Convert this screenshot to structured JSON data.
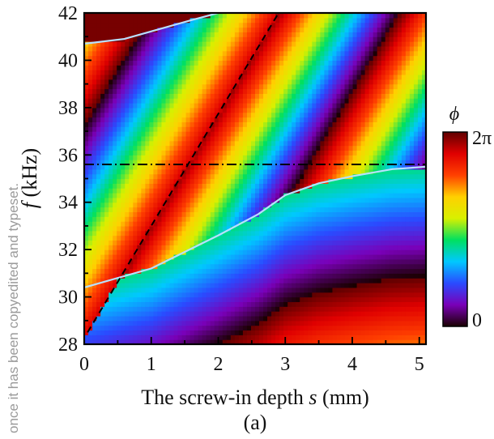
{
  "watermark": "once it has been copyedited and typeset.",
  "chart_data": {
    "type": "heatmap",
    "panel_label": "(a)",
    "xlabel_prefix": "The screw-in depth ",
    "xlabel_var": "s",
    "xlabel_suffix": " (mm)",
    "ylabel_var": "f",
    "ylabel_suffix": " (kHz)",
    "xlim": [
      0,
      5.1
    ],
    "ylim": [
      28,
      42
    ],
    "xticks": [
      0,
      1,
      2,
      3,
      4,
      5
    ],
    "yticks": [
      28,
      30,
      32,
      34,
      36,
      38,
      40,
      42
    ],
    "colorbar": {
      "title": "ϕ",
      "max_label": "2π",
      "min_label": "0",
      "range": [
        0,
        6.2832
      ],
      "colors": [
        "#1a0000",
        "#7a00b8",
        "#2a4bff",
        "#00c8ff",
        "#00e060",
        "#d8f000",
        "#ffd000",
        "#ff4000",
        "#e00000",
        "#600000"
      ]
    },
    "horizontal_line": {
      "f": 35.6,
      "style": "dash-dot"
    },
    "dashed_line": {
      "points": [
        [
          0.05,
          28.5
        ],
        [
          2.9,
          42
        ]
      ],
      "style": "dashed"
    },
    "phase_branch_lines": [
      {
        "name": "upper",
        "points": [
          [
            0.0,
            40.7
          ],
          [
            0.6,
            40.9
          ],
          [
            1.6,
            41.7
          ],
          [
            2.0,
            42.0
          ]
        ]
      },
      {
        "name": "lower",
        "points": [
          [
            0.0,
            30.4
          ],
          [
            1.0,
            31.2
          ],
          [
            2.0,
            32.6
          ],
          [
            2.6,
            33.5
          ],
          [
            3.0,
            34.3
          ],
          [
            3.5,
            34.8
          ],
          [
            4.0,
            35.1
          ],
          [
            4.6,
            35.4
          ],
          [
            5.1,
            35.5
          ]
        ]
      }
    ]
  }
}
